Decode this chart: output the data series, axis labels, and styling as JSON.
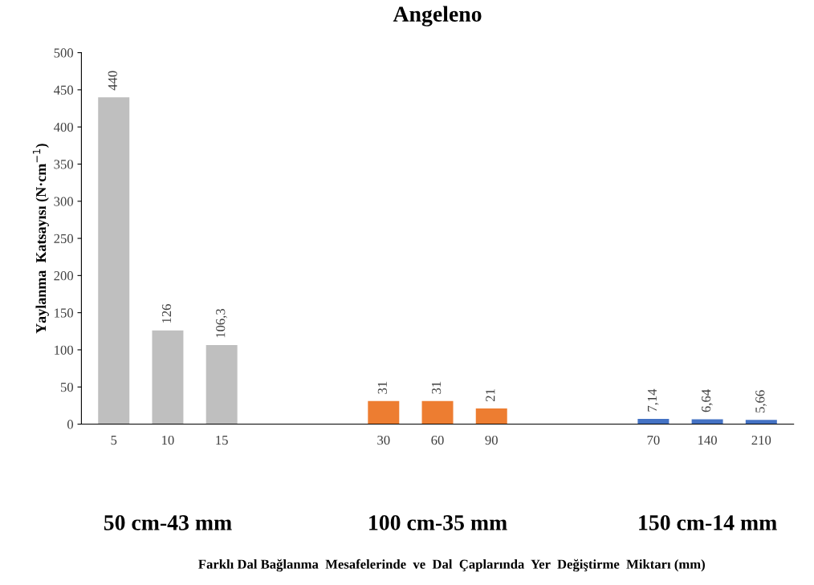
{
  "chart_data": {
    "type": "bar",
    "title": "Angeleno",
    "ylabel": "Yaylanma  Katsayısı (N·cm$^{−1}$)",
    "categories": [
      "5",
      "10",
      "15",
      null,
      null,
      "30",
      "60",
      "90",
      null,
      null,
      "70",
      "140",
      "210"
    ],
    "values": [
      440,
      126,
      106.3,
      null,
      null,
      31,
      31,
      21,
      null,
      null,
      7.14,
      6.64,
      5.66
    ],
    "value_labels": [
      "440",
      "126",
      "106,3",
      null,
      null,
      "31",
      "31",
      "21",
      null,
      null,
      "7,14",
      "6,64",
      "5,66"
    ],
    "colors": [
      "#bfbfbf",
      "#bfbfbf",
      "#bfbfbf",
      null,
      null,
      "#ed7d31",
      "#ed7d31",
      "#ed7d31",
      null,
      null,
      "#4472c4",
      "#4472c4",
      "#4472c4"
    ],
    "annotations": [
      "50 cm-43 mm",
      "100 cm-35 mm",
      "150 cm-14 mm",
      "Farklı Dal Bağlanma  Mesafelerinde  ve  Dal  Çaplarında  Yer  Değiştirme  Miktarı (mm)"
    ],
    "ylim": [
      0,
      500
    ],
    "yticks": [
      0,
      50,
      100,
      150,
      200,
      250,
      300,
      350,
      400,
      450,
      500
    ],
    "grid": false,
    "legend": false
  }
}
